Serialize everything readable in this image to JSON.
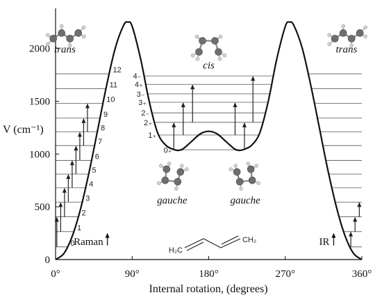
{
  "chart_data": {
    "type": "line",
    "xlabel": "Internal rotation, (degrees)",
    "ylabel": "V (cm⁻¹)",
    "xlim": [
      0,
      360
    ],
    "ylim": [
      0,
      2400
    ],
    "x_ticks": [
      {
        "value": 0,
        "label": "0°"
      },
      {
        "value": 90,
        "label": "90°"
      },
      {
        "value": 180,
        "label": "180°"
      },
      {
        "value": 270,
        "label": "270°"
      },
      {
        "value": 360,
        "label": "360°"
      }
    ],
    "y_ticks": [
      {
        "value": 0,
        "label": "0"
      },
      {
        "value": 500,
        "label": "500"
      },
      {
        "value": 1000,
        "label": "1000"
      },
      {
        "value": 1500,
        "label": "1500"
      },
      {
        "value": 2000,
        "label": "2000"
      }
    ],
    "potential_curve": {
      "x": [
        0,
        10,
        20,
        30,
        40,
        50,
        60,
        70,
        80,
        85,
        90,
        100,
        110,
        120,
        130,
        140,
        145,
        150,
        160,
        170,
        180,
        190,
        200,
        210,
        215,
        220,
        230,
        240,
        250,
        260,
        270,
        275,
        280,
        290,
        300,
        310,
        320,
        330,
        340,
        350,
        360
      ],
      "y": [
        0,
        60,
        230,
        500,
        850,
        1250,
        1650,
        2000,
        2220,
        2250,
        2210,
        1900,
        1500,
        1200,
        1080,
        1040,
        1035,
        1050,
        1120,
        1190,
        1215,
        1190,
        1120,
        1050,
        1035,
        1040,
        1080,
        1200,
        1500,
        1900,
        2210,
        2250,
        2220,
        2000,
        1650,
        1250,
        850,
        500,
        230,
        60,
        0
      ]
    },
    "trans_levels": {
      "labels": [
        "0",
        "1",
        "2",
        "3",
        "4",
        "5",
        "6",
        "7",
        "8",
        "9",
        "10",
        "11",
        "12"
      ],
      "values": [
        120,
        265,
        405,
        545,
        680,
        810,
        940,
        1080,
        1210,
        1340,
        1480,
        1620,
        1760
      ]
    },
    "gauche_levels": {
      "labels": [
        "0₊",
        "1₊",
        "2₊",
        "2₋",
        "3₊",
        "3₋",
        "4₊",
        "4₋"
      ],
      "values": [
        1040,
        1180,
        1300,
        1390,
        1490,
        1570,
        1660,
        1740
      ]
    },
    "raman_arrows": [
      {
        "x": 1.5,
        "y_from": 120,
        "y_to": 405
      },
      {
        "x": 6,
        "y_from": 265,
        "y_to": 545
      },
      {
        "x": 10.5,
        "y_from": 405,
        "y_to": 680
      },
      {
        "x": 15,
        "y_from": 545,
        "y_to": 810
      },
      {
        "x": 19.5,
        "y_from": 680,
        "y_to": 940
      },
      {
        "x": 24,
        "y_from": 810,
        "y_to": 1080
      },
      {
        "x": 28.5,
        "y_from": 940,
        "y_to": 1210
      },
      {
        "x": 33,
        "y_from": 1080,
        "y_to": 1340
      },
      {
        "x": 37.5,
        "y_from": 1210,
        "y_to": 1480
      },
      {
        "x": 139,
        "y_from": 1040,
        "y_to": 1300
      },
      {
        "x": 150,
        "y_from": 1180,
        "y_to": 1490
      },
      {
        "x": 161,
        "y_from": 1300,
        "y_to": 1660
      },
      {
        "x": 211,
        "y_from": 1180,
        "y_to": 1490
      },
      {
        "x": 222,
        "y_from": 1040,
        "y_to": 1300
      },
      {
        "x": 232,
        "y_from": 1300,
        "y_to": 1740
      }
    ],
    "ir_arrows": [
      {
        "x": 347,
        "y_from": 120,
        "y_to": 265
      },
      {
        "x": 352,
        "y_from": 265,
        "y_to": 405
      },
      {
        "x": 357,
        "y_from": 405,
        "y_to": 545
      }
    ],
    "conformer_labels": [
      {
        "text": "trans",
        "x": 11,
        "y": 1960
      },
      {
        "text": "cis",
        "x": 180,
        "y": 1810
      },
      {
        "text": "trans",
        "x": 342,
        "y": 1960
      },
      {
        "text": "gauche",
        "x": 137,
        "y": 530
      },
      {
        "text": "gauche",
        "x": 223,
        "y": 530
      }
    ],
    "spectroscopy_labels": [
      {
        "text": "Raman",
        "x": 56,
        "y": 140
      },
      {
        "text": "IR",
        "x": 322,
        "y": 140
      }
    ],
    "molecule_formula": {
      "left": "H₂C",
      "right": "CH₂"
    }
  }
}
